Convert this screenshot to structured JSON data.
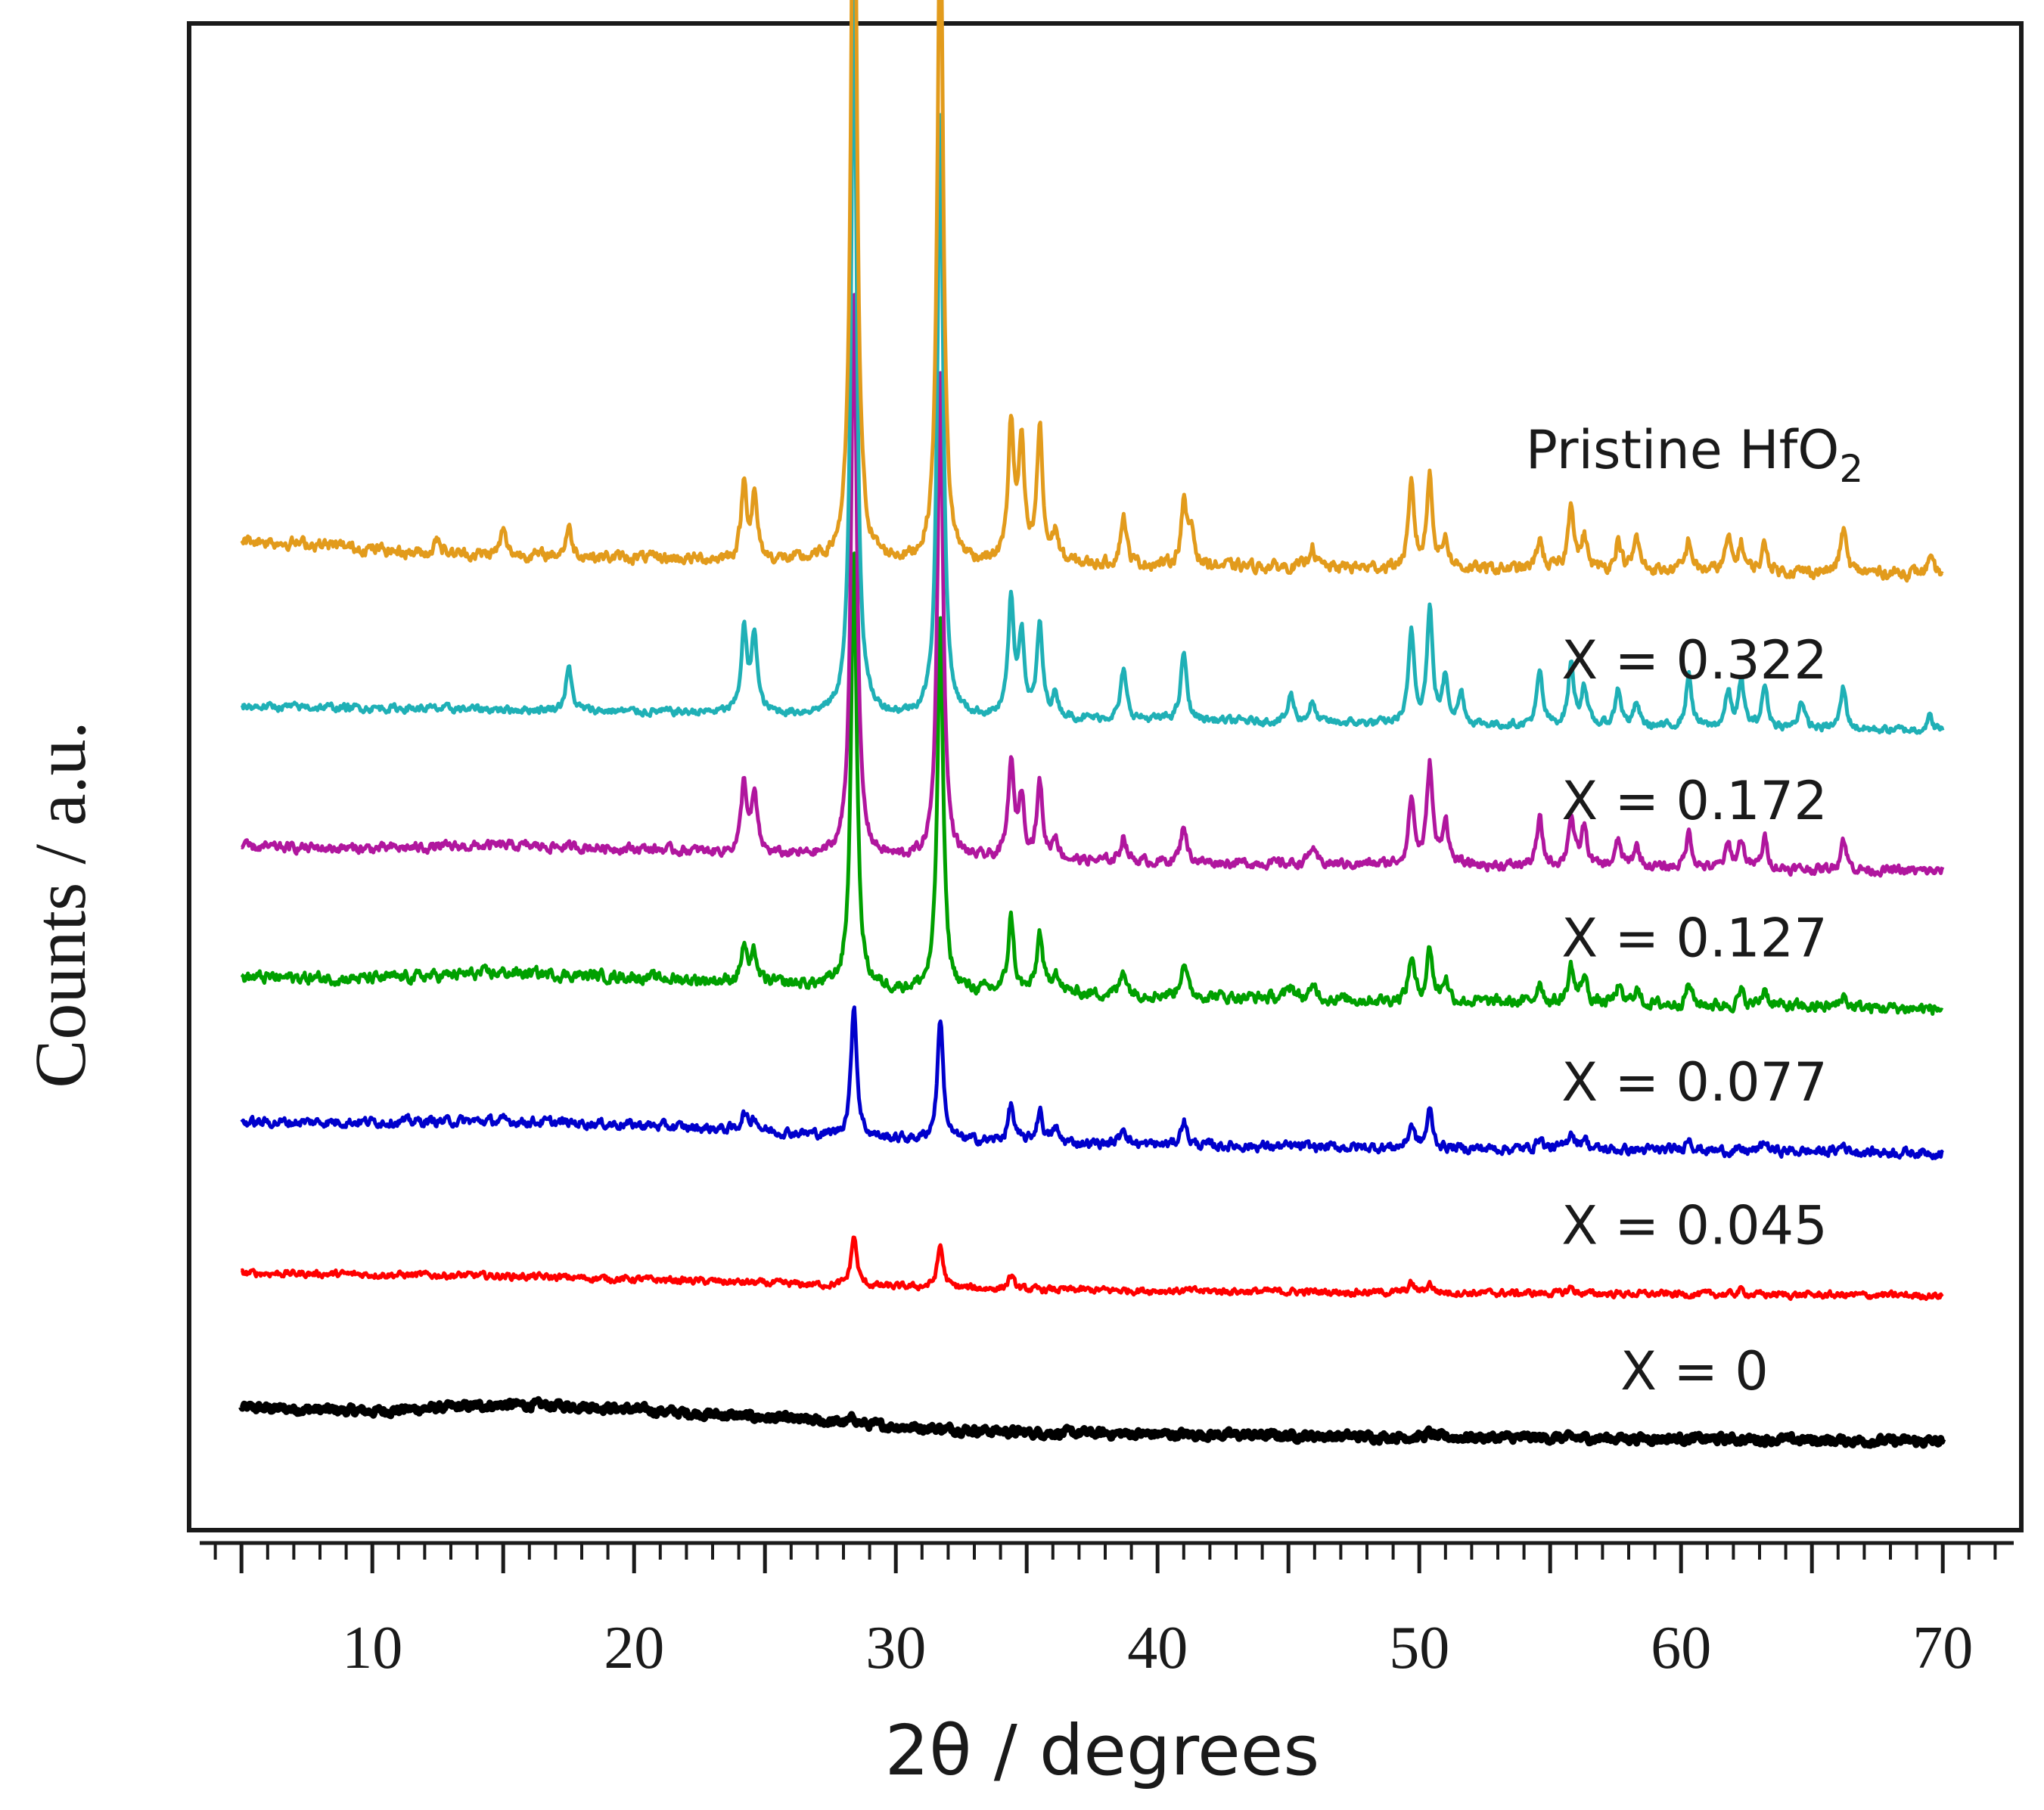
{
  "chart_data": {
    "type": "line",
    "title": "",
    "xlabel": "2θ / degrees",
    "ylabel": "Counts / a.u.",
    "xlim": [
      3,
      73
    ],
    "x_ticks": [
      10,
      20,
      30,
      40,
      50,
      60,
      70
    ],
    "y_ticks": [],
    "grid": false,
    "legend": "inline labels at right of each trace",
    "offset_stacked": true,
    "x_start": 5,
    "x_end": 70,
    "series": [
      {
        "name": "X = 0",
        "color": "#000000",
        "offset": 0,
        "noise": 4.5,
        "baseline": [
          [
            5,
            49
          ],
          [
            10,
            44
          ],
          [
            15,
            53
          ],
          [
            18,
            51
          ],
          [
            22,
            42
          ],
          [
            25,
            36
          ],
          [
            30,
            24
          ],
          [
            35,
            16
          ],
          [
            40,
            14
          ],
          [
            50,
            10
          ],
          [
            60,
            8
          ],
          [
            70,
            4
          ]
        ],
        "peaks": [
          [
            28.4,
            8
          ],
          [
            50.4,
            6
          ]
        ]
      },
      {
        "name": "X = 0.045",
        "color": "#ff0000",
        "offset": 193,
        "noise": 3.5,
        "baseline": [
          [
            5,
            34
          ],
          [
            15,
            30
          ],
          [
            22,
            24
          ],
          [
            28,
            17
          ],
          [
            35,
            12
          ],
          [
            50,
            8
          ],
          [
            70,
            4
          ]
        ],
        "peaks": [
          [
            28.4,
            66
          ],
          [
            31.7,
            56
          ],
          [
            34.4,
            18
          ],
          [
            49.7,
            12
          ],
          [
            50.4,
            12
          ],
          [
            55.8,
            8
          ],
          [
            62.3,
            6
          ]
        ]
      },
      {
        "name": "X = 0.077",
        "color": "#0000cc",
        "offset": 378,
        "noise": 5,
        "baseline": [
          [
            5,
            48
          ],
          [
            15,
            50
          ],
          [
            20,
            45
          ],
          [
            25,
            36
          ],
          [
            30,
            26
          ],
          [
            40,
            18
          ],
          [
            50,
            14
          ],
          [
            70,
            8
          ]
        ],
        "peaks": [
          [
            24.2,
            22
          ],
          [
            24.6,
            18
          ],
          [
            28.4,
            175
          ],
          [
            31.7,
            162
          ],
          [
            34.4,
            48
          ],
          [
            35.5,
            42
          ],
          [
            36.1,
            18
          ],
          [
            38.7,
            24
          ],
          [
            41.0,
            34
          ],
          [
            49.7,
            30
          ],
          [
            50.4,
            50
          ],
          [
            54.6,
            16
          ],
          [
            55.8,
            24
          ],
          [
            56.3,
            16
          ],
          [
            60.3,
            18
          ],
          [
            63.2,
            12
          ],
          [
            66.2,
            10
          ]
        ]
      },
      {
        "name": "X = 0.127",
        "color": "#00a000",
        "offset": 568,
        "noise": 6,
        "baseline": [
          [
            5,
            50
          ],
          [
            10,
            48
          ],
          [
            15,
            56
          ],
          [
            20,
            50
          ],
          [
            25,
            42
          ],
          [
            30,
            33
          ],
          [
            40,
            26
          ],
          [
            50,
            18
          ],
          [
            70,
            8
          ]
        ],
        "peaks": [
          [
            24.2,
            48
          ],
          [
            24.6,
            36
          ],
          [
            28.4,
            580
          ],
          [
            31.7,
            488
          ],
          [
            34.4,
            98
          ],
          [
            35.5,
            78
          ],
          [
            36.1,
            30
          ],
          [
            38.7,
            34
          ],
          [
            41.0,
            46
          ],
          [
            45.1,
            18
          ],
          [
            46.0,
            18
          ],
          [
            49.7,
            58
          ],
          [
            50.4,
            70
          ],
          [
            51.0,
            30
          ],
          [
            54.6,
            28
          ],
          [
            55.8,
            48
          ],
          [
            56.3,
            36
          ],
          [
            57.6,
            22
          ],
          [
            58.3,
            20
          ],
          [
            60.3,
            28
          ],
          [
            62.3,
            18
          ],
          [
            63.2,
            24
          ],
          [
            66.2,
            16
          ]
        ]
      },
      {
        "name": "X = 0.172",
        "color": "#b0169e",
        "offset": 750,
        "noise": 5,
        "baseline": [
          [
            5,
            40
          ],
          [
            10,
            38
          ],
          [
            15,
            42
          ],
          [
            20,
            38
          ],
          [
            25,
            30
          ],
          [
            30,
            24
          ],
          [
            40,
            20
          ],
          [
            50,
            16
          ],
          [
            70,
            8
          ]
        ],
        "peaks": [
          [
            24.2,
            92
          ],
          [
            24.6,
            74
          ],
          [
            28.4,
            760
          ],
          [
            31.7,
            640
          ],
          [
            34.4,
            125
          ],
          [
            34.8,
            80
          ],
          [
            35.5,
            100
          ],
          [
            36.1,
            30
          ],
          [
            38.7,
            34
          ],
          [
            41.0,
            50
          ],
          [
            45.9,
            22
          ],
          [
            49.7,
            88
          ],
          [
            50.4,
            132
          ],
          [
            51.0,
            60
          ],
          [
            54.6,
            62
          ],
          [
            55.8,
            66
          ],
          [
            56.3,
            52
          ],
          [
            57.6,
            34
          ],
          [
            58.3,
            28
          ],
          [
            60.3,
            48
          ],
          [
            61.8,
            30
          ],
          [
            62.3,
            38
          ],
          [
            63.2,
            40
          ],
          [
            66.2,
            42
          ]
        ]
      },
      {
        "name": "X = 0.322",
        "color": "#1fb0b6",
        "offset": 938,
        "noise": 4,
        "baseline": [
          [
            5,
            38
          ],
          [
            15,
            34
          ],
          [
            25,
            28
          ],
          [
            30,
            24
          ],
          [
            40,
            20
          ],
          [
            50,
            14
          ],
          [
            70,
            6
          ]
        ],
        "peaks": [
          [
            17.5,
            58
          ],
          [
            24.2,
            108
          ],
          [
            24.6,
            102
          ],
          [
            28.4,
            960
          ],
          [
            31.7,
            800
          ],
          [
            34.4,
            150
          ],
          [
            34.8,
            108
          ],
          [
            35.5,
            120
          ],
          [
            36.1,
            30
          ],
          [
            38.7,
            64
          ],
          [
            41.0,
            90
          ],
          [
            45.1,
            36
          ],
          [
            45.9,
            26
          ],
          [
            49.7,
            120
          ],
          [
            50.4,
            150
          ],
          [
            51.0,
            60
          ],
          [
            51.6,
            40
          ],
          [
            54.6,
            70
          ],
          [
            55.8,
            80
          ],
          [
            56.3,
            52
          ],
          [
            57.6,
            50
          ],
          [
            58.3,
            30
          ],
          [
            60.3,
            70
          ],
          [
            61.8,
            46
          ],
          [
            62.3,
            60
          ],
          [
            63.2,
            56
          ],
          [
            64.6,
            38
          ],
          [
            66.2,
            55
          ],
          [
            69.5,
            18
          ]
        ]
      },
      {
        "name": "Pristine HfO",
        "name_sub": "2",
        "color": "#e29b1c",
        "offset": 1138,
        "noise": 6,
        "baseline": [
          [
            5,
            58
          ],
          [
            8,
            52
          ],
          [
            12,
            40
          ],
          [
            18,
            36
          ],
          [
            25,
            30
          ],
          [
            30,
            28
          ],
          [
            40,
            24
          ],
          [
            50,
            20
          ],
          [
            70,
            14
          ]
        ],
        "peaks": [
          [
            12.5,
            24
          ],
          [
            15.0,
            32
          ],
          [
            17.5,
            38
          ],
          [
            24.2,
            100
          ],
          [
            24.6,
            80
          ],
          [
            28.4,
            1080
          ],
          [
            31.7,
            900
          ],
          [
            34.4,
            180
          ],
          [
            34.8,
            150
          ],
          [
            35.5,
            176
          ],
          [
            36.1,
            40
          ],
          [
            38.7,
            66
          ],
          [
            41.0,
            80
          ],
          [
            41.3,
            46
          ],
          [
            45.9,
            30
          ],
          [
            49.7,
            108
          ],
          [
            50.4,
            122
          ],
          [
            51.0,
            40
          ],
          [
            54.6,
            40
          ],
          [
            55.8,
            90
          ],
          [
            56.3,
            42
          ],
          [
            57.6,
            40
          ],
          [
            58.3,
            42
          ],
          [
            60.3,
            40
          ],
          [
            61.8,
            42
          ],
          [
            62.3,
            36
          ],
          [
            63.2,
            36
          ],
          [
            66.2,
            58
          ],
          [
            69.5,
            16
          ]
        ]
      }
    ]
  }
}
